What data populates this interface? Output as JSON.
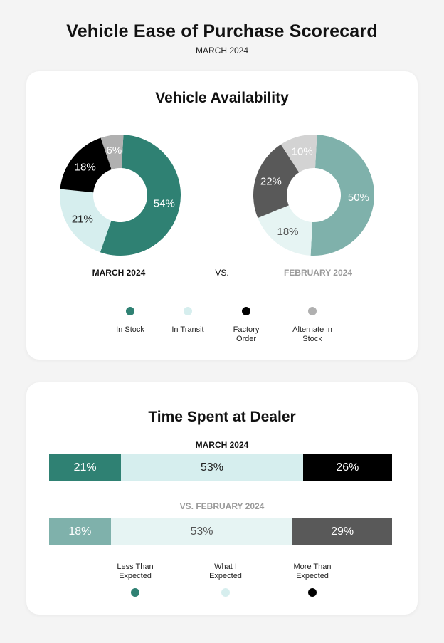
{
  "header": {
    "title": "Vehicle Ease of Purchase Scorecard",
    "subtitle": "MARCH 2024"
  },
  "availability": {
    "title": "Vehicle Availability",
    "march_label": "MARCH 2024",
    "vs_label": "VS.",
    "feb_label": "FEBRUARY 2024",
    "legend": [
      {
        "label": "In Stock",
        "color": "#2f8173"
      },
      {
        "label": "In Transit",
        "color": "#d6eeee"
      },
      {
        "label": "Factory Order",
        "color": "#000000"
      },
      {
        "label": "Alternate in Stock",
        "color": "#b0b0b0"
      }
    ]
  },
  "time_spent": {
    "title": "Time Spent at Dealer",
    "march_label": "MARCH 2024",
    "feb_label": "VS. FEBRUARY 2024",
    "legend": [
      {
        "label": "Less Than Expected",
        "color": "#2f8173"
      },
      {
        "label": "What I Expected",
        "color": "#d6eeee"
      },
      {
        "label": "More Than Expected",
        "color": "#000000"
      }
    ]
  },
  "chart_data": [
    {
      "type": "pie",
      "name": "march_availability",
      "categories": [
        "In Stock",
        "In Transit",
        "Factory Order",
        "Alternate in Stock"
      ],
      "values": [
        54,
        21,
        18,
        6
      ],
      "labels": [
        "54%",
        "21%",
        "18%",
        "6%"
      ],
      "colors": [
        "#2f8173",
        "#d6eeee",
        "#000000",
        "#b0b0b0"
      ],
      "label_colors": [
        "#ffffff",
        "#222222",
        "#ffffff",
        "#ffffff"
      ]
    },
    {
      "type": "pie",
      "name": "february_availability",
      "categories": [
        "In Stock",
        "In Transit",
        "Factory Order",
        "Alternate in Stock"
      ],
      "values": [
        50,
        18,
        22,
        10
      ],
      "labels": [
        "50%",
        "18%",
        "22%",
        "10%"
      ],
      "colors": [
        "#7fb1ab",
        "#e6f4f3",
        "#595959",
        "#d3d3d3"
      ],
      "label_colors": [
        "#ffffff",
        "#555555",
        "#ffffff",
        "#ffffff"
      ]
    },
    {
      "type": "bar",
      "name": "march_time_spent",
      "categories": [
        "Less Than Expected",
        "What I Expected",
        "More Than Expected"
      ],
      "values": [
        21,
        53,
        26
      ],
      "labels": [
        "21%",
        "53%",
        "26%"
      ],
      "colors": [
        "#2f8173",
        "#d6eeee",
        "#000000"
      ],
      "label_colors": [
        "#ffffff",
        "#222222",
        "#ffffff"
      ]
    },
    {
      "type": "bar",
      "name": "february_time_spent",
      "categories": [
        "Less Than Expected",
        "What I Expected",
        "More Than Expected"
      ],
      "values": [
        18,
        53,
        29
      ],
      "labels": [
        "18%",
        "53%",
        "29%"
      ],
      "colors": [
        "#7fb1ab",
        "#e6f4f3",
        "#595959"
      ],
      "label_colors": [
        "#ffffff",
        "#555555",
        "#ffffff"
      ]
    }
  ]
}
